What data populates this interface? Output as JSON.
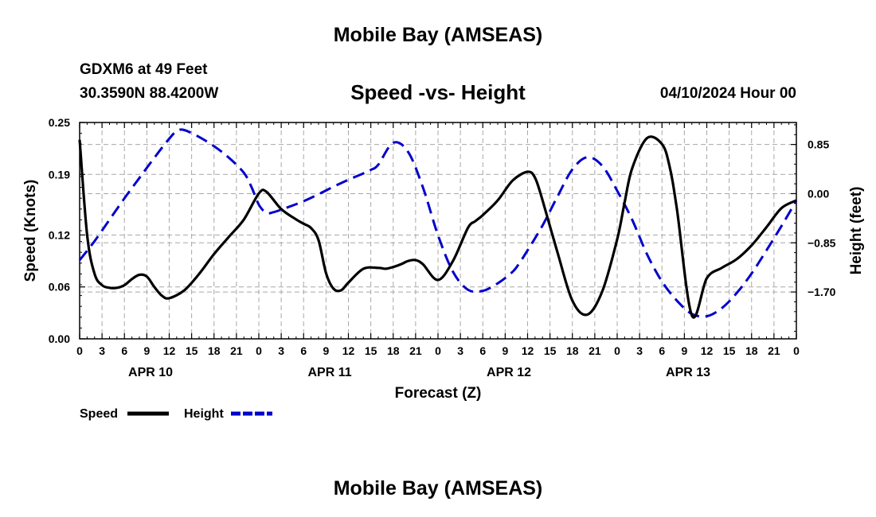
{
  "page": {
    "title": "Mobile Bay (AMSEAS)",
    "bottom_title": "Mobile Bay (AMSEAS)",
    "station": "GDXM6 at 49 Feet",
    "coords": "30.3590N  88.4200W",
    "subtitle": "Speed -vs- Height",
    "datetime": "04/10/2024 Hour 00"
  },
  "chart_data": {
    "type": "line",
    "title": "Speed -vs- Height",
    "xlabel": "Forecast (Z)",
    "ylabel": "Speed (Knots)",
    "y2label": "Height (feet)",
    "x_unit": "forecast hour",
    "xlim": [
      0,
      96
    ],
    "ylim": [
      0,
      0.25
    ],
    "y2lim": [
      -2.51,
      1.23
    ],
    "x_ticks": [
      0,
      3,
      6,
      9,
      12,
      15,
      18,
      21,
      24,
      27,
      30,
      33,
      36,
      39,
      42,
      45,
      48,
      51,
      54,
      57,
      60,
      63,
      66,
      69,
      72,
      75,
      78,
      81,
      84,
      87,
      90,
      93,
      96
    ],
    "x_tick_labels": [
      "0",
      "3",
      "6",
      "9",
      "12",
      "15",
      "18",
      "21",
      "0",
      "3",
      "6",
      "9",
      "12",
      "15",
      "18",
      "21",
      "0",
      "3",
      "6",
      "9",
      "12",
      "15",
      "18",
      "21",
      "0",
      "3",
      "6",
      "9",
      "12",
      "15",
      "18",
      "21",
      "0"
    ],
    "date_labels": [
      {
        "label": "APR 10",
        "x": 9.5
      },
      {
        "label": "APR 11",
        "x": 33.5
      },
      {
        "label": "APR 12",
        "x": 57.5
      },
      {
        "label": "APR 13",
        "x": 81.5
      }
    ],
    "y_ticks": [
      0.0,
      0.06,
      0.12,
      0.19,
      0.25
    ],
    "y_tick_labels": [
      "0.00",
      "0.06",
      "0.12",
      "0.19",
      "0.25"
    ],
    "y2_ticks": [
      0.85,
      0.0,
      -0.85,
      -1.7
    ],
    "y2_tick_labels": [
      "0.85",
      "0.00",
      "−0.85",
      "−1.70"
    ],
    "grid": true,
    "legend": {
      "position": "bottom-left",
      "entries": [
        "Speed",
        "Height"
      ]
    },
    "series": [
      {
        "name": "Speed",
        "axis": "left",
        "color": "#000000",
        "dash": "solid",
        "x": [
          0,
          1,
          2,
          3,
          4,
          5,
          6,
          7,
          8,
          9,
          10,
          11,
          12,
          14,
          16,
          18,
          20,
          22,
          24,
          25,
          27,
          29,
          30,
          31,
          32,
          33,
          34,
          35,
          36,
          38,
          40,
          41,
          42,
          43,
          44,
          45,
          46,
          48,
          50,
          52,
          53,
          54,
          56,
          58,
          60,
          61,
          62,
          64,
          66,
          68,
          70,
          72,
          73,
          74,
          76,
          78,
          79,
          80,
          82,
          84,
          86,
          88,
          90,
          92,
          94,
          96
        ],
        "y": [
          0.23,
          0.12,
          0.075,
          0.062,
          0.059,
          0.059,
          0.062,
          0.069,
          0.074,
          0.072,
          0.06,
          0.05,
          0.047,
          0.056,
          0.075,
          0.098,
          0.118,
          0.138,
          0.168,
          0.17,
          0.15,
          0.138,
          0.133,
          0.128,
          0.114,
          0.076,
          0.058,
          0.056,
          0.065,
          0.081,
          0.082,
          0.081,
          0.083,
          0.086,
          0.09,
          0.091,
          0.086,
          0.068,
          0.09,
          0.128,
          0.136,
          0.143,
          0.16,
          0.183,
          0.193,
          0.186,
          0.16,
          0.1,
          0.044,
          0.028,
          0.055,
          0.115,
          0.158,
          0.197,
          0.232,
          0.225,
          0.2,
          0.15,
          0.027,
          0.07,
          0.082,
          0.092,
          0.108,
          0.129,
          0.151,
          0.16
        ]
      },
      {
        "name": "Height",
        "axis": "right",
        "color": "#0000cc",
        "dash": "dashed",
        "x": [
          0,
          2,
          4,
          6,
          8,
          10,
          12,
          13,
          14,
          16,
          18,
          20,
          22,
          23,
          24,
          25,
          26,
          28,
          30,
          32,
          34,
          36,
          38,
          39,
          40,
          42,
          44,
          46,
          48,
          50,
          52,
          54,
          56,
          58,
          59,
          60,
          62,
          64,
          66,
          68,
          70,
          72,
          74,
          76,
          78,
          80,
          82,
          84,
          86,
          88,
          90,
          92,
          94,
          96
        ],
        "y": [
          -1.15,
          -0.82,
          -0.45,
          -0.08,
          0.27,
          0.62,
          0.95,
          1.08,
          1.1,
          0.98,
          0.82,
          0.62,
          0.36,
          0.12,
          -0.19,
          -0.33,
          -0.32,
          -0.23,
          -0.13,
          -0.01,
          0.12,
          0.24,
          0.35,
          0.41,
          0.5,
          0.88,
          0.72,
          0.1,
          -0.72,
          -1.35,
          -1.66,
          -1.68,
          -1.55,
          -1.35,
          -1.18,
          -0.98,
          -0.55,
          -0.05,
          0.42,
          0.63,
          0.48,
          0.05,
          -0.45,
          -1.05,
          -1.52,
          -1.85,
          -2.08,
          -2.12,
          -1.98,
          -1.72,
          -1.38,
          -0.98,
          -0.56,
          -0.12
        ]
      }
    ]
  }
}
